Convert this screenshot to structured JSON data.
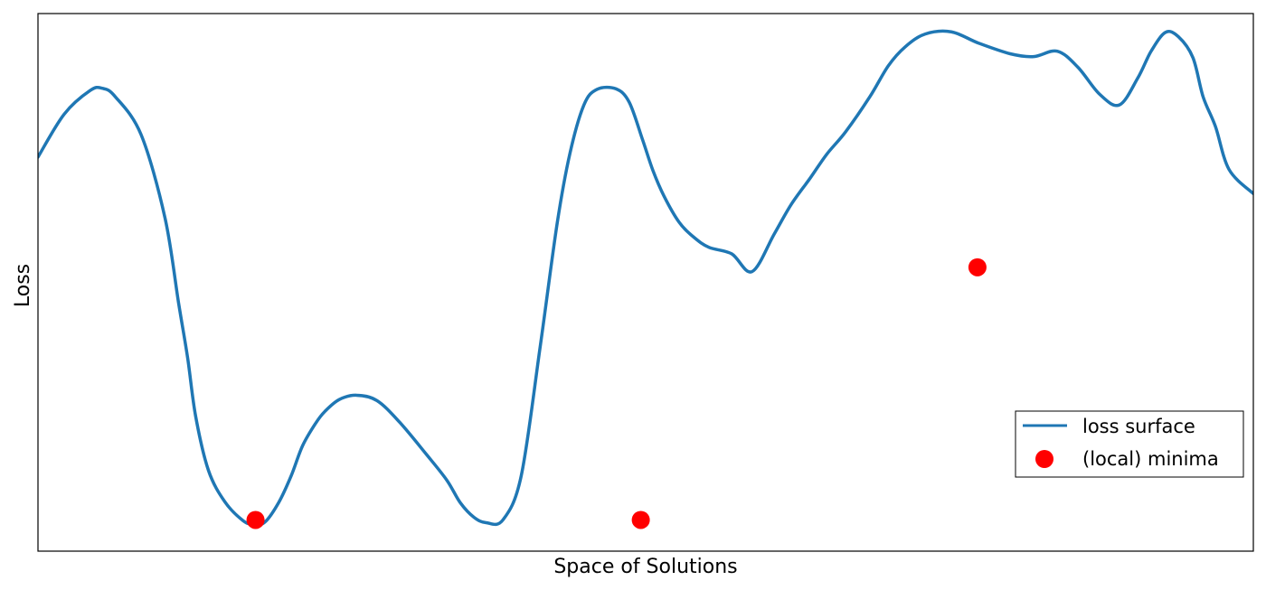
{
  "chart_data": {
    "type": "line",
    "title": "",
    "xlabel": "Space of Solutions",
    "ylabel": "Loss",
    "xlim": [
      0,
      1
    ],
    "ylim": [
      0,
      1
    ],
    "xticks": false,
    "yticks": false,
    "grid": false,
    "legend_position": "lower-right",
    "series": [
      {
        "name": "loss surface",
        "kind": "line",
        "color": "#1f77b4",
        "x": [
          0.0,
          0.0216,
          0.043,
          0.0528,
          0.0633,
          0.0848,
          0.1045,
          0.1158,
          0.1231,
          0.1298,
          0.1403,
          0.1537,
          0.1686,
          0.1774,
          0.1867,
          0.1982,
          0.2083,
          0.2177,
          0.2285,
          0.2361,
          0.2479,
          0.2621,
          0.2789,
          0.2975,
          0.3196,
          0.3364,
          0.3475,
          0.3587,
          0.3687,
          0.3825,
          0.3976,
          0.4132,
          0.4272,
          0.4377,
          0.4492,
          0.4599,
          0.4755,
          0.4865,
          0.4975,
          0.506,
          0.5152,
          0.5275,
          0.5396,
          0.5522,
          0.5708,
          0.5876,
          0.6058,
          0.6198,
          0.6354,
          0.6489,
          0.6645,
          0.6844,
          0.6997,
          0.7135,
          0.7301,
          0.7515,
          0.7739,
          0.8003,
          0.8193,
          0.8387,
          0.8557,
          0.8735,
          0.8898,
          0.9049,
          0.9159,
          0.9277,
          0.9383,
          0.9503,
          0.9587,
          0.9688,
          0.98,
          1.0
        ],
        "y": [
          0.733,
          0.813,
          0.857,
          0.861,
          0.846,
          0.775,
          0.62,
          0.46,
          0.36,
          0.25,
          0.15,
          0.092,
          0.057,
          0.05,
          0.054,
          0.091,
          0.14,
          0.196,
          0.238,
          0.26,
          0.282,
          0.29,
          0.28,
          0.24,
          0.18,
          0.132,
          0.09,
          0.063,
          0.053,
          0.058,
          0.14,
          0.38,
          0.61,
          0.74,
          0.83,
          0.859,
          0.86,
          0.835,
          0.765,
          0.708,
          0.66,
          0.612,
          0.584,
          0.565,
          0.553,
          0.52,
          0.59,
          0.645,
          0.694,
          0.738,
          0.78,
          0.845,
          0.903,
          0.938,
          0.962,
          0.966,
          0.945,
          0.925,
          0.92,
          0.93,
          0.9,
          0.85,
          0.83,
          0.88,
          0.93,
          0.965,
          0.957,
          0.918,
          0.845,
          0.79,
          0.71,
          0.665
        ]
      },
      {
        "name": "(local) minima",
        "kind": "scatter",
        "color": "#ff0000",
        "x": [
          0.179,
          0.496,
          0.773
        ],
        "y": [
          0.058,
          0.058,
          0.528
        ]
      }
    ]
  }
}
